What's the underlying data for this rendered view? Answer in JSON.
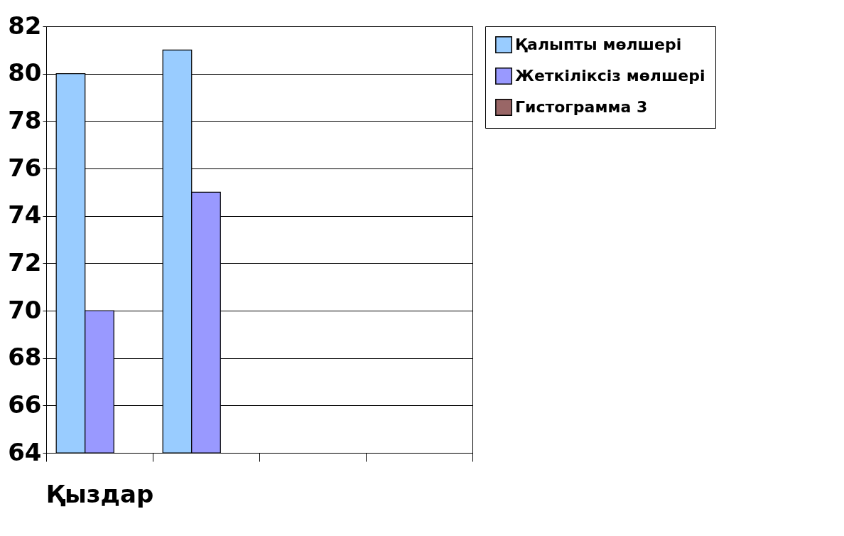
{
  "chart_data": {
    "type": "bar",
    "categories": [
      "Қыздар",
      null,
      null,
      null
    ],
    "series": [
      {
        "name": "Қалыпты мөлшері",
        "color": "#99ccff",
        "values": [
          80,
          81,
          null,
          null
        ]
      },
      {
        "name": "Жеткіліксіз мөлшері",
        "color": "#9999ff",
        "values": [
          70,
          75,
          null,
          null
        ]
      },
      {
        "name": "Гистограмма 3",
        "color": "#996666",
        "values": [
          null,
          null,
          null,
          null
        ]
      }
    ],
    "ylim": [
      64,
      82
    ],
    "yticks": [
      64,
      66,
      68,
      70,
      72,
      74,
      76,
      78,
      80,
      82
    ],
    "grid": "y",
    "legend": "right"
  }
}
